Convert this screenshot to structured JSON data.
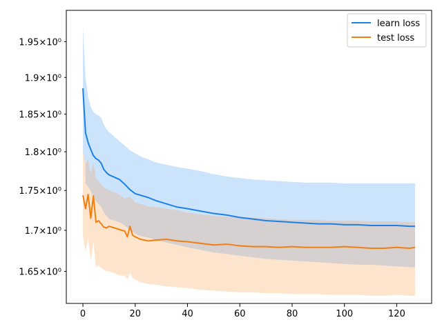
{
  "chart_data": {
    "type": "line",
    "title": "",
    "xlabel": "",
    "ylabel": "",
    "y_scale": "log",
    "xlim": [
      -6.35,
      133.35
    ],
    "ylim": [
      1.612,
      1.995
    ],
    "grid": false,
    "legend_placement": "top-right",
    "x_ticks": [
      {
        "value": 0,
        "label": "0"
      },
      {
        "value": 20,
        "label": "20"
      },
      {
        "value": 40,
        "label": "40"
      },
      {
        "value": 60,
        "label": "60"
      },
      {
        "value": 80,
        "label": "80"
      },
      {
        "value": 100,
        "label": "100"
      },
      {
        "value": 120,
        "label": "120"
      }
    ],
    "y_ticks": [
      {
        "value": 1.65,
        "label": "1.65×10⁰"
      },
      {
        "value": 1.7,
        "label": "1.7×10⁰"
      },
      {
        "value": 1.75,
        "label": "1.75×10⁰"
      },
      {
        "value": 1.8,
        "label": "1.8×10⁰"
      },
      {
        "value": 1.85,
        "label": "1.85×10⁰"
      },
      {
        "value": 1.9,
        "label": "1.9×10⁰"
      },
      {
        "value": 1.95,
        "label": "1.95×10⁰"
      }
    ],
    "series": [
      {
        "name": "learn loss",
        "color": "#1a80e8",
        "band_color": "#cce4fb",
        "x": [
          0,
          1,
          2,
          3,
          4,
          5,
          6,
          7,
          8,
          9,
          10,
          12,
          14,
          16,
          18,
          20,
          22,
          25,
          28,
          32,
          36,
          40,
          45,
          50,
          55,
          60,
          65,
          70,
          75,
          80,
          85,
          90,
          95,
          100,
          105,
          110,
          115,
          120,
          125,
          127
        ],
        "mean": [
          1.885,
          1.825,
          1.812,
          1.803,
          1.795,
          1.791,
          1.789,
          1.785,
          1.777,
          1.773,
          1.77,
          1.767,
          1.764,
          1.758,
          1.751,
          1.746,
          1.744,
          1.741,
          1.737,
          1.733,
          1.729,
          1.727,
          1.724,
          1.721,
          1.719,
          1.716,
          1.714,
          1.712,
          1.711,
          1.71,
          1.709,
          1.708,
          1.708,
          1.707,
          1.707,
          1.706,
          1.706,
          1.706,
          1.705,
          1.705
        ],
        "upper": [
          1.972,
          1.9,
          1.873,
          1.86,
          1.853,
          1.85,
          1.848,
          1.845,
          1.836,
          1.83,
          1.826,
          1.82,
          1.814,
          1.808,
          1.802,
          1.798,
          1.794,
          1.79,
          1.786,
          1.783,
          1.78,
          1.778,
          1.775,
          1.771,
          1.768,
          1.766,
          1.764,
          1.763,
          1.762,
          1.761,
          1.76,
          1.76,
          1.76,
          1.759,
          1.759,
          1.759,
          1.759,
          1.759,
          1.759,
          1.759
        ],
        "lower": [
          1.8,
          1.759,
          1.755,
          1.749,
          1.741,
          1.736,
          1.733,
          1.729,
          1.722,
          1.718,
          1.714,
          1.712,
          1.71,
          1.706,
          1.7,
          1.696,
          1.693,
          1.691,
          1.688,
          1.685,
          1.682,
          1.679,
          1.676,
          1.673,
          1.671,
          1.669,
          1.667,
          1.665,
          1.664,
          1.663,
          1.662,
          1.661,
          1.66,
          1.659,
          1.658,
          1.658,
          1.657,
          1.656,
          1.655,
          1.655
        ]
      },
      {
        "name": "test loss",
        "color": "#f07f10",
        "band_color": "#fde0c4",
        "x": [
          0,
          1,
          2,
          3,
          4,
          5,
          6,
          7,
          8,
          9,
          10,
          12,
          14,
          16,
          17,
          18,
          19,
          20,
          22,
          25,
          28,
          32,
          36,
          40,
          45,
          50,
          55,
          60,
          65,
          70,
          75,
          80,
          85,
          90,
          95,
          100,
          105,
          110,
          115,
          120,
          125,
          127
        ],
        "mean": [
          1.744,
          1.727,
          1.745,
          1.715,
          1.743,
          1.71,
          1.712,
          1.708,
          1.704,
          1.703,
          1.705,
          1.703,
          1.701,
          1.699,
          1.692,
          1.705,
          1.694,
          1.692,
          1.689,
          1.687,
          1.688,
          1.689,
          1.687,
          1.686,
          1.684,
          1.682,
          1.683,
          1.681,
          1.68,
          1.68,
          1.679,
          1.68,
          1.679,
          1.679,
          1.679,
          1.68,
          1.679,
          1.678,
          1.678,
          1.679,
          1.678,
          1.679
        ],
        "upper": [
          1.8,
          1.785,
          1.79,
          1.772,
          1.785,
          1.765,
          1.762,
          1.758,
          1.754,
          1.752,
          1.75,
          1.748,
          1.745,
          1.74,
          1.736,
          1.742,
          1.738,
          1.735,
          1.733,
          1.73,
          1.729,
          1.727,
          1.725,
          1.722,
          1.72,
          1.718,
          1.717,
          1.716,
          1.716,
          1.715,
          1.714,
          1.713,
          1.713,
          1.713,
          1.712,
          1.712,
          1.712,
          1.711,
          1.711,
          1.711,
          1.71,
          1.71
        ],
        "lower": [
          1.694,
          1.674,
          1.69,
          1.662,
          1.686,
          1.655,
          1.657,
          1.654,
          1.652,
          1.65,
          1.65,
          1.648,
          1.645,
          1.645,
          1.64,
          1.648,
          1.642,
          1.64,
          1.637,
          1.635,
          1.634,
          1.632,
          1.631,
          1.63,
          1.628,
          1.627,
          1.626,
          1.625,
          1.625,
          1.624,
          1.624,
          1.623,
          1.623,
          1.623,
          1.622,
          1.622,
          1.622,
          1.621,
          1.621,
          1.622,
          1.621,
          1.621
        ]
      }
    ],
    "overlap_color": "#d7d0d0"
  }
}
